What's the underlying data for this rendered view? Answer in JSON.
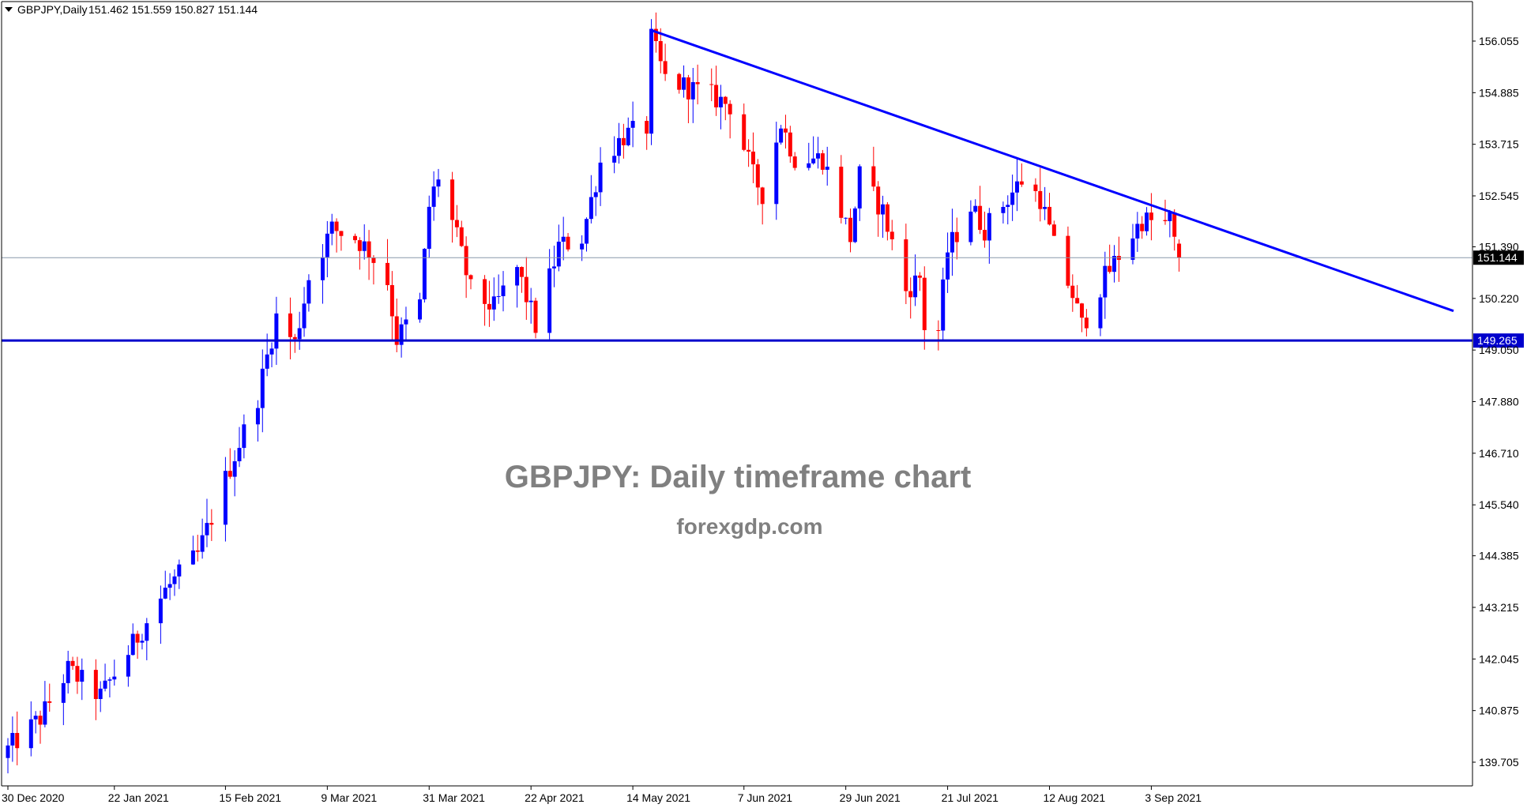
{
  "header": {
    "symbol_timeframe": "GBPJPY,Daily",
    "ohlc": "151.462 151.559 150.827 151.144",
    "dropdown_icon": "triangle-down-icon"
  },
  "watermark": {
    "title": "GBPJPY: Daily timeframe chart",
    "site": "forexgdp.com"
  },
  "colors": {
    "bull": "#0000ff",
    "bear": "#ff0000",
    "trendline": "#0000ff",
    "support": "#0000cc",
    "current_price_line": "#8899aa",
    "axis": "#000000",
    "watermark": "#808080"
  },
  "chart_data": {
    "type": "candlestick",
    "symbol": "GBPJPY",
    "timeframe": "Daily",
    "y_axis": {
      "ticks": [
        "156.055",
        "154.885",
        "153.715",
        "152.545",
        "151.390",
        "150.220",
        "149.050",
        "147.880",
        "146.710",
        "145.540",
        "144.385",
        "143.215",
        "142.045",
        "140.875",
        "139.705"
      ],
      "tick_values": [
        156.055,
        154.885,
        153.715,
        152.545,
        151.39,
        150.22,
        149.05,
        147.88,
        146.71,
        145.54,
        144.385,
        143.215,
        142.045,
        140.875,
        139.705
      ],
      "range": [
        139.3,
        156.8
      ]
    },
    "x_axis": {
      "ticks": [
        "30 Dec 2020",
        "22 Jan 2021",
        "15 Feb 2021",
        "9 Mar 2021",
        "31 Mar 2021",
        "22 Apr 2021",
        "14 May 2021",
        "7 Jun 2021",
        "29 Jun 2021",
        "21 Jul 2021",
        "12 Aug 2021",
        "3 Sep 2021"
      ],
      "start_date": "2020-12-30",
      "tick_dates": [
        "2020-12-30",
        "2021-01-22",
        "2021-02-15",
        "2021-03-09",
        "2021-03-31",
        "2021-04-22",
        "2021-05-14",
        "2021-06-07",
        "2021-06-29",
        "2021-07-21",
        "2021-08-12",
        "2021-09-03"
      ]
    },
    "levels": {
      "current_price": {
        "value": 151.144,
        "label": "151.144"
      },
      "support": {
        "value": 149.265,
        "label": "149.265"
      }
    },
    "trendline": {
      "start": {
        "date": "2021-05-18",
        "price": 156.3
      },
      "end": {
        "date": "2021-09-08",
        "price": 152.15
      }
    },
    "anchors": [
      {
        "date": "2020-12-30",
        "close": 140.0
      },
      {
        "date": "2021-01-06",
        "close": 140.7
      },
      {
        "date": "2021-01-12",
        "close": 141.8
      },
      {
        "date": "2021-01-19",
        "close": 141.2
      },
      {
        "date": "2021-01-25",
        "close": 142.2
      },
      {
        "date": "2021-02-02",
        "close": 143.6
      },
      {
        "date": "2021-02-09",
        "close": 144.4
      },
      {
        "date": "2021-02-16",
        "close": 146.4
      },
      {
        "date": "2021-02-22",
        "close": 148.0
      },
      {
        "date": "2021-02-26",
        "close": 149.8
      },
      {
        "date": "2021-03-02",
        "close": 149.2
      },
      {
        "date": "2021-03-05",
        "close": 150.7
      },
      {
        "date": "2021-03-10",
        "close": 151.8
      },
      {
        "date": "2021-03-15",
        "close": 151.6
      },
      {
        "date": "2021-03-18",
        "close": 151.3
      },
      {
        "date": "2021-03-22",
        "close": 150.6
      },
      {
        "date": "2021-03-24",
        "close": 149.3
      },
      {
        "date": "2021-03-29",
        "close": 150.1
      },
      {
        "date": "2021-03-31",
        "close": 152.3
      },
      {
        "date": "2021-04-02",
        "close": 153.0
      },
      {
        "date": "2021-04-06",
        "close": 151.6
      },
      {
        "date": "2021-04-09",
        "close": 150.4
      },
      {
        "date": "2021-04-14",
        "close": 150.0
      },
      {
        "date": "2021-04-19",
        "close": 150.9
      },
      {
        "date": "2021-04-23",
        "close": 149.6
      },
      {
        "date": "2021-04-28",
        "close": 151.4
      },
      {
        "date": "2021-05-03",
        "close": 151.6
      },
      {
        "date": "2021-05-07",
        "close": 153.3
      },
      {
        "date": "2021-05-12",
        "close": 153.9
      },
      {
        "date": "2021-05-17",
        "close": 154.1
      },
      {
        "date": "2021-05-18",
        "close": 156.1
      },
      {
        "date": "2021-05-21",
        "close": 155.2
      },
      {
        "date": "2021-05-26",
        "close": 155.0
      },
      {
        "date": "2021-05-31",
        "close": 154.8
      },
      {
        "date": "2021-06-04",
        "close": 154.6
      },
      {
        "date": "2021-06-09",
        "close": 153.0
      },
      {
        "date": "2021-06-11",
        "close": 152.6
      },
      {
        "date": "2021-06-15",
        "close": 154.2
      },
      {
        "date": "2021-06-18",
        "close": 153.4
      },
      {
        "date": "2021-06-24",
        "close": 153.4
      },
      {
        "date": "2021-06-30",
        "close": 151.6
      },
      {
        "date": "2021-07-02",
        "close": 153.0
      },
      {
        "date": "2021-07-07",
        "close": 152.2
      },
      {
        "date": "2021-07-12",
        "close": 150.4
      },
      {
        "date": "2021-07-15",
        "close": 150.7
      },
      {
        "date": "2021-07-16",
        "close": 149.6
      },
      {
        "date": "2021-07-19",
        "close": 149.5
      },
      {
        "date": "2021-07-21",
        "close": 151.3
      },
      {
        "date": "2021-07-26",
        "close": 152.3
      },
      {
        "date": "2021-07-29",
        "close": 151.8
      },
      {
        "date": "2021-08-03",
        "close": 152.5
      },
      {
        "date": "2021-08-06",
        "close": 152.9
      },
      {
        "date": "2021-08-10",
        "close": 152.5
      },
      {
        "date": "2021-08-13",
        "close": 151.4
      },
      {
        "date": "2021-08-17",
        "close": 150.3
      },
      {
        "date": "2021-08-19",
        "close": 149.6
      },
      {
        "date": "2021-08-20",
        "close": 149.8
      },
      {
        "date": "2021-08-24",
        "close": 150.7
      },
      {
        "date": "2021-08-27",
        "close": 151.2
      },
      {
        "date": "2021-09-01",
        "close": 152.0
      },
      {
        "date": "2021-09-06",
        "close": 151.9
      },
      {
        "date": "2021-09-07",
        "close": 152.0
      },
      {
        "date": "2021-09-08",
        "close": 151.462
      },
      {
        "date": "2021-09-09",
        "close": 151.144
      }
    ],
    "last_candle": {
      "open": 151.462,
      "high": 151.559,
      "low": 150.827,
      "close": 151.144
    }
  }
}
